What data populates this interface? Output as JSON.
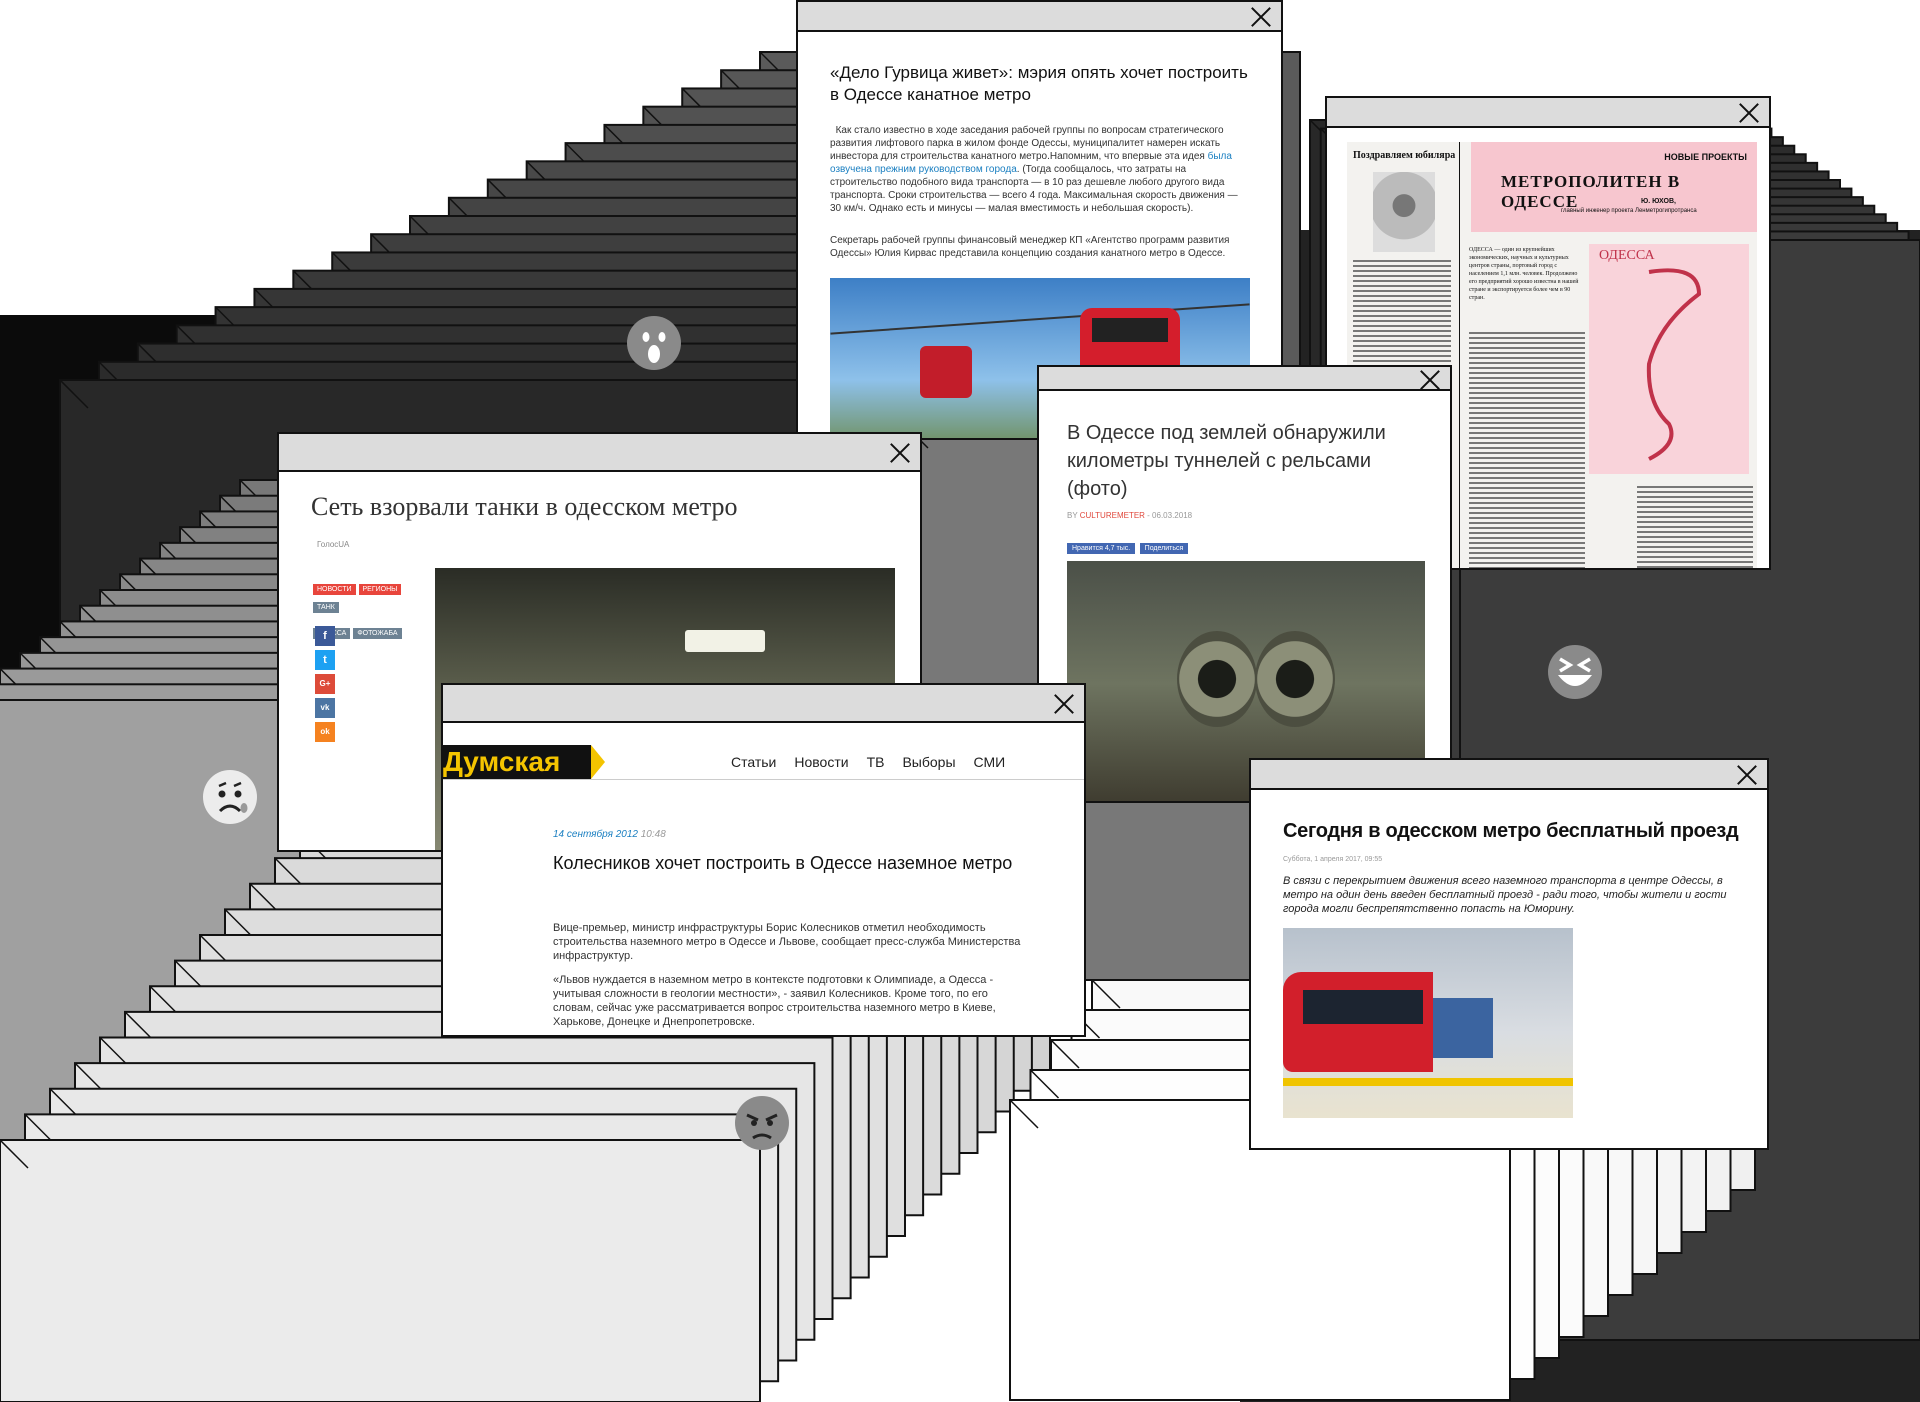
{
  "window1": {
    "title": "«Дело Гурвица живет»: мэрия опять хочет построить в Одессе канатное метро",
    "para1_a": "Как стало известно в ходе заседания рабочей группы по вопросам стратегического развития лифтового парка в жилом фонде Одессы, муниципалитет намерен искать инвестора для строительства канатного метро.Напомним, что впервые эта идея ",
    "para1_link": "была озвучена прежним руководством города",
    "para1_b": ". (Тогда сообщалось, что затраты на строительство подобного вида транспорта — в 10 раз дешевле любого другого вида транспорта. Сроки строительства — всего 4 года. Максимальная скорость движения — 30 км/ч. Однако есть и минусы — малая вместимость и небольшая скорость).",
    "para2": "Секретарь рабочей группы финансовый менеджер КП «Агентство программ развития Одессы» Юлия Кирвас представила концепцию создания канатного метро в Одессе."
  },
  "window2": {
    "column_head": "Поздравляем юбиляра",
    "header_small": "НОВЫЕ ПРОЕКТЫ",
    "headline": "МЕТРОПОЛИТЕН В ОДЕССЕ",
    "author": "Ю. ЮХОВ,",
    "author_role": "главный инженер проекта Ленметрогипротранса",
    "map_title": "ОДЕССА",
    "intro": "ОДЕССА — один из крупнейших экономических, научных и культурных центров страны, портовый город с населением 1,1 млн. человек. Продолжено его предприятий хорошо известна в нашей стране и экспортируется более чем в 90 стран."
  },
  "window3": {
    "title": "В Одессе под землей обнаружили километры туннелей с рельсами (фото)",
    "by": "BY ",
    "author": "CULTUREMETER",
    "date": " - 06.03.2018",
    "like": "Нравится 4,7 тыс.",
    "share": "Поделиться"
  },
  "window4": {
    "title": "Сеть взорвали танки в одесском метро",
    "source": "ГолосUA",
    "tags": [
      "НОВОСТИ",
      "РЕГИОНЫ",
      "ТАНК",
      "ОДЕССА",
      "ФОТОЖАБА"
    ],
    "social": [
      "f",
      "t",
      "G+",
      "vk",
      "ok"
    ]
  },
  "window5": {
    "logo": "Думская",
    "nav": [
      "Статьи",
      "Новости",
      "ТВ",
      "Выборы",
      "СМИ"
    ],
    "date": "14 сентября 2012",
    "time": " 10:48",
    "title": "Колесников хочет построить в Одессе наземное метро",
    "para1": "Вице-премьер, министр инфраструктуры Борис Колесников отметил необходимость строительства наземного метро в Одессе и Львове, сообщает пресс-служба Министерства инфраструктур.",
    "para2": "«Львов нуждается в наземном метро в контексте подготовки к Олимпиаде, а Одесса - учитывая сложности в геологии местности», - заявил Колесников. Кроме того, по его словам, сейчас уже рассматривается вопрос строительства наземного метро в Киеве, Харькове, Донецке и Днепропетровске."
  },
  "window6": {
    "title": "Сегодня в одесском метро бесплатный проезд",
    "meta": "Суббота, 1 апреля 2017, 09:55",
    "lead": "В связи с перекрытием движения всего наземного транспорта в центре Одессы, в метро на один день введен бесплатный проезд - ради того, чтобы жители и гости города могли беспрепятственно попасть на Юморину."
  },
  "colors": {
    "accent_blue": "#1a7fc1",
    "dumskaya_yellow": "#f4c400",
    "news_red": "#e8453c",
    "paper_pink": "#f7c6cf"
  },
  "emojis": [
    "wow-emoji",
    "laugh-emoji",
    "sad-emoji",
    "angry-emoji"
  ]
}
